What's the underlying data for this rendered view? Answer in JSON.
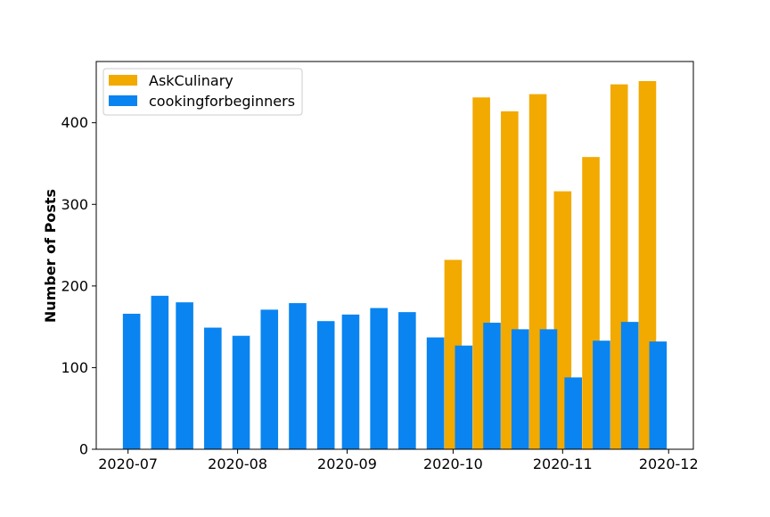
{
  "chart_data": {
    "type": "bar",
    "title": "",
    "xlabel": "",
    "ylabel": "Number of Posts",
    "ylim": [
      0,
      475
    ],
    "yticks": [
      0,
      100,
      200,
      300,
      400
    ],
    "xlim": [
      "2020-06-22",
      "2020-12-08"
    ],
    "xticks": [
      {
        "date": "2020-07-01",
        "label": "2020-07"
      },
      {
        "date": "2020-08-01",
        "label": "2020-08"
      },
      {
        "date": "2020-09-01",
        "label": "2020-09"
      },
      {
        "date": "2020-10-01",
        "label": "2020-10"
      },
      {
        "date": "2020-11-01",
        "label": "2020-11"
      },
      {
        "date": "2020-12-01",
        "label": "2020-12"
      }
    ],
    "legend": "upper-left",
    "grid": false,
    "series": [
      {
        "name": "AskCulinary",
        "color": "#f2a900",
        "points": [
          {
            "x": "2020-10-01",
            "y": 232
          },
          {
            "x": "2020-10-09",
            "y": 431
          },
          {
            "x": "2020-10-17",
            "y": 414
          },
          {
            "x": "2020-10-25",
            "y": 435
          },
          {
            "x": "2020-11-01",
            "y": 316
          },
          {
            "x": "2020-11-09",
            "y": 358
          },
          {
            "x": "2020-11-17",
            "y": 447
          },
          {
            "x": "2020-11-25",
            "y": 451
          }
        ]
      },
      {
        "name": "cookingforbeginners",
        "color": "#0a84f0",
        "points": [
          {
            "x": "2020-07-02",
            "y": 166
          },
          {
            "x": "2020-07-10",
            "y": 188
          },
          {
            "x": "2020-07-17",
            "y": 180
          },
          {
            "x": "2020-07-25",
            "y": 149
          },
          {
            "x": "2020-08-02",
            "y": 139
          },
          {
            "x": "2020-08-10",
            "y": 171
          },
          {
            "x": "2020-08-18",
            "y": 179
          },
          {
            "x": "2020-08-26",
            "y": 157
          },
          {
            "x": "2020-09-02",
            "y": 165
          },
          {
            "x": "2020-09-10",
            "y": 173
          },
          {
            "x": "2020-09-18",
            "y": 168
          },
          {
            "x": "2020-09-26",
            "y": 137
          },
          {
            "x": "2020-10-04",
            "y": 127
          },
          {
            "x": "2020-10-12",
            "y": 155
          },
          {
            "x": "2020-10-20",
            "y": 147
          },
          {
            "x": "2020-10-28",
            "y": 147
          },
          {
            "x": "2020-11-04",
            "y": 88
          },
          {
            "x": "2020-11-12",
            "y": 133
          },
          {
            "x": "2020-11-20",
            "y": 156
          },
          {
            "x": "2020-11-28",
            "y": 132
          }
        ]
      }
    ]
  }
}
